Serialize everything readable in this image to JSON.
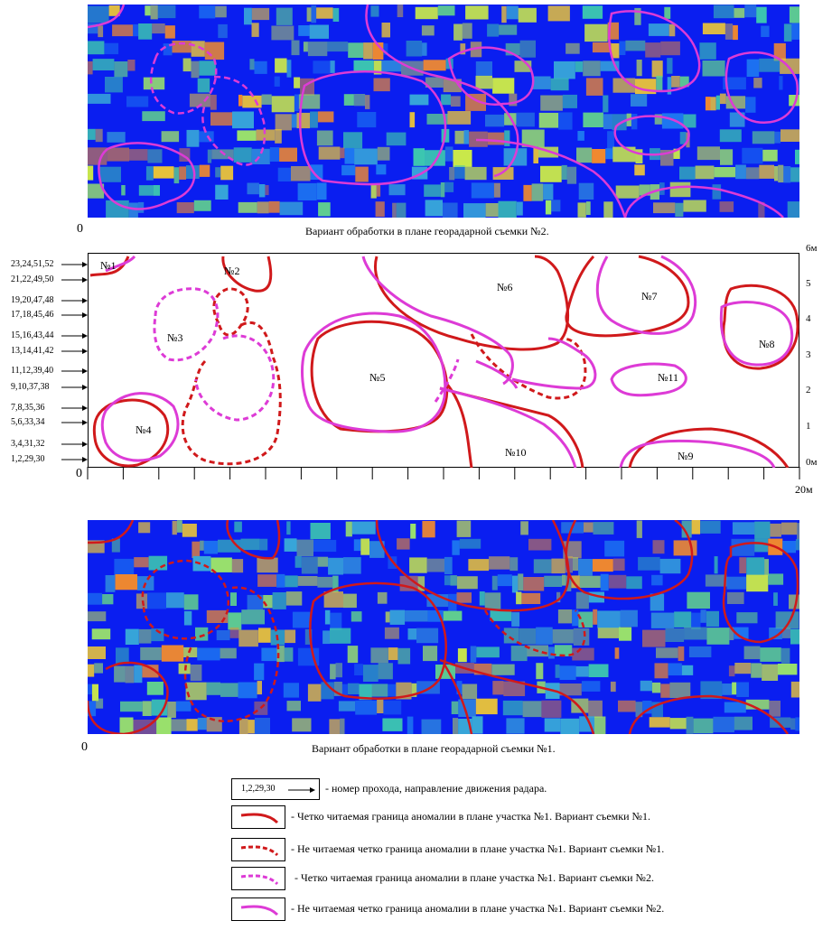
{
  "top_panel": {
    "caption": "Вариант обработки в плане георадарной съемки №2.",
    "zero": "0"
  },
  "bottom_panel": {
    "caption": "Вариант обработки в плане георадарной съемки №1.",
    "zero": "0"
  },
  "plan": {
    "zero": "0",
    "x_end": "20м",
    "y_labels": [
      "6м",
      "5",
      "4",
      "3",
      "2",
      "1",
      "0м"
    ],
    "pass_labels": [
      "23,24,51,52",
      "21,22,49,50",
      "19,20,47,48",
      "17,18,45,46",
      "15,16,43,44",
      "13,14,41,42",
      "11,12,39,40",
      "9,10,37,38",
      "7,8,35,36",
      "5,6,33,34",
      "3,4,31,32",
      "1,2,29,30"
    ],
    "anomalies": [
      "№1",
      "№2",
      "№3",
      "№4",
      "№5",
      "№6",
      "№7",
      "№8",
      "№9",
      "№10",
      "№11"
    ]
  },
  "legend": {
    "pass_example": "1,2,29,30",
    "items": [
      "- номер прохода, направление движения радара.",
      "- Четко читаемая граница аномалии в плане участка №1. Вариант съемки №1.",
      "- Не читаемая четко граница аномалии в плане участка №1. Вариант съемки №1.",
      "- Четко читаемая граница аномалии в плане участка №1. Вариант съемки №2.",
      "- Не читаемая четко граница аномалии в плане участка №1. Вариант съемки №2."
    ]
  },
  "colors": {
    "survey1": "#d0191b",
    "survey2": "#dd3bd6",
    "radar_background": "#0a1ef0"
  }
}
